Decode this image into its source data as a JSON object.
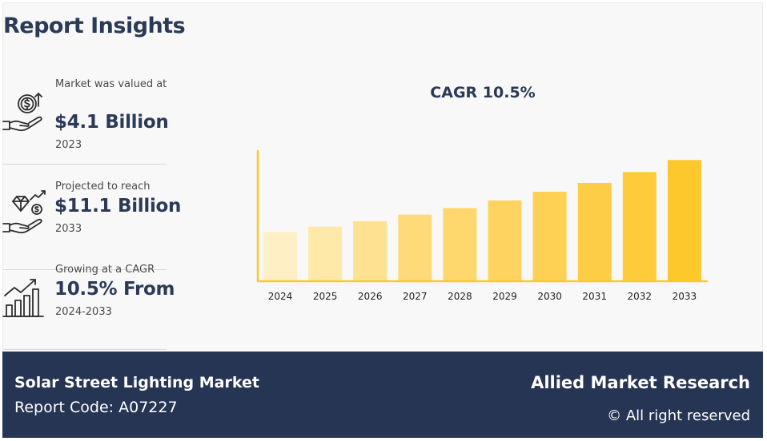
{
  "header": {
    "title": "Report Insights"
  },
  "stats": [
    {
      "label": "Market was valued at",
      "value": "$4.1 Billion",
      "sub": "2023",
      "icon": "money-hand-icon"
    },
    {
      "label": "Projected to reach",
      "value": "$11.1 Billion",
      "sub": "2033",
      "icon": "diamond-hand-icon"
    },
    {
      "label": "Growing at a CAGR",
      "value": "10.5% From",
      "sub": "2024-2033",
      "icon": "growth-bar-chart-icon"
    }
  ],
  "chart_data": {
    "type": "bar",
    "title": "CAGR 10.5%",
    "categories": [
      "2024",
      "2025",
      "2026",
      "2027",
      "2028",
      "2029",
      "2030",
      "2031",
      "2032",
      "2033"
    ],
    "values": [
      4.5,
      5.0,
      5.5,
      6.1,
      6.7,
      7.4,
      8.2,
      9.0,
      10.0,
      11.1
    ],
    "colors": [
      "#fef0c4",
      "#fee9a8",
      "#fee291",
      "#fedb78",
      "#fed86c",
      "#fed35f",
      "#fed154",
      "#fecd46",
      "#fecb3a",
      "#fcc82b"
    ],
    "axis_color": "#fcc82b",
    "ylim": [
      0,
      12
    ],
    "grid": false
  },
  "footer": {
    "market_name": "Solar Street Lighting Market",
    "report_code": "Report Code: A07227",
    "publisher": "Allied Market Research",
    "rights": "© All right reserved"
  },
  "colors": {
    "navy": "#263554",
    "title": "#2b3a57",
    "bar_accent": "#fcc82b"
  }
}
